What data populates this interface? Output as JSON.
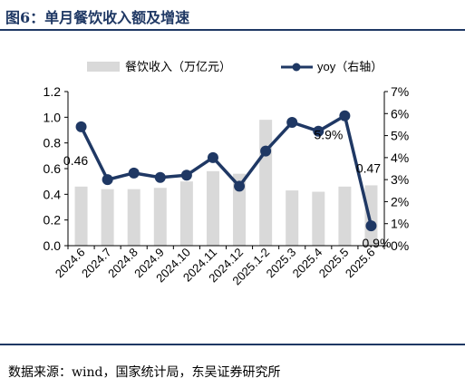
{
  "header": {
    "title": "图6：单月餐饮收入额及增速"
  },
  "footer": {
    "source": "数据来源：wind，国家统计局，东吴证券研究所"
  },
  "colors": {
    "bar": "#d9d9d9",
    "line": "#1f3864",
    "rule": "#1f3864"
  },
  "chart_data": {
    "type": "bar",
    "title": "",
    "categories": [
      "2024.6",
      "2024.7",
      "2024.8",
      "2024.9",
      "2024.10",
      "2024.11",
      "2024.12",
      "2025.1-2",
      "2025.3",
      "2025.4",
      "2025.5",
      "2025.6"
    ],
    "series": [
      {
        "name": "餐饮收入（万亿元）",
        "type": "bar",
        "axis": "left",
        "values": [
          0.46,
          0.44,
          0.44,
          0.45,
          0.5,
          0.58,
          0.56,
          0.98,
          0.43,
          0.42,
          0.46,
          0.47
        ]
      },
      {
        "name": "yoy（右轴）",
        "type": "line",
        "axis": "right",
        "values": [
          5.4,
          3.0,
          3.3,
          3.1,
          3.2,
          4.0,
          2.7,
          4.3,
          5.6,
          5.2,
          5.9,
          0.9
        ]
      }
    ],
    "ylim_left": [
      0,
      1.2
    ],
    "yticks_left": [
      "0.0",
      "0.2",
      "0.4",
      "0.6",
      "0.8",
      "1.0",
      "1.2"
    ],
    "ylim_right": [
      0,
      7
    ],
    "yticks_right": [
      "0%",
      "1%",
      "2%",
      "3%",
      "4%",
      "5%",
      "6%",
      "7%"
    ],
    "data_labels": [
      {
        "series": 0,
        "index": 0,
        "text": "0.46"
      },
      {
        "series": 0,
        "index": 11,
        "text": "0.47"
      },
      {
        "series": 1,
        "index": 10,
        "text": "5.9%"
      },
      {
        "series": 1,
        "index": 11,
        "text": "0.9%"
      }
    ],
    "grid": false,
    "legend_position": "top"
  }
}
